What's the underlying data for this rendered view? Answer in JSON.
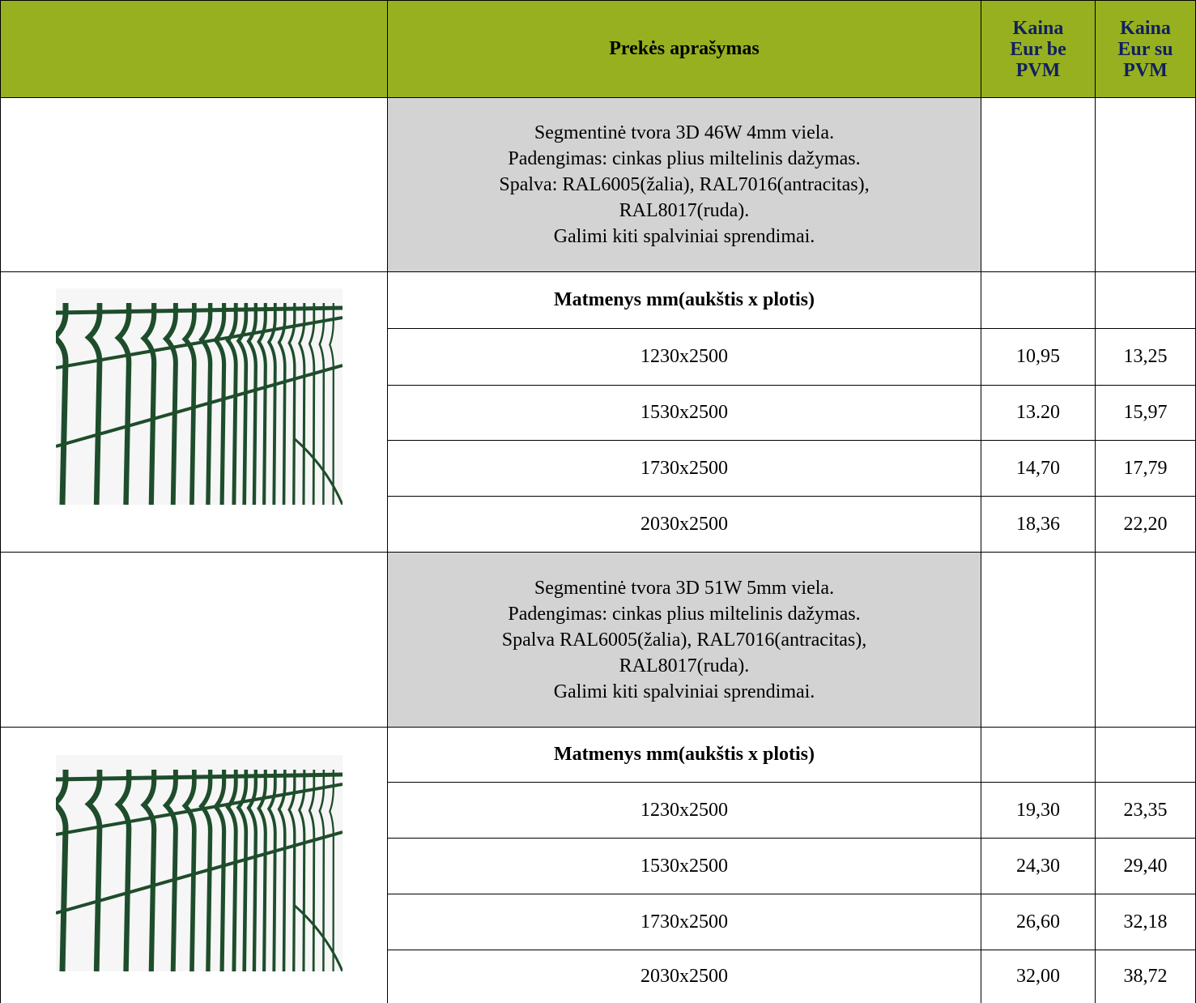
{
  "header": {
    "description": "Prekės aprašymas",
    "price_without_vat": "Kaina\nEur be\nPVM",
    "price_with_vat": "Kaina\nEur su\nPVM"
  },
  "products": [
    {
      "description": [
        "Segmentinė tvora 3D 46W 4mm viela.",
        "Padengimas: cinkas plius miltelinis dažymas.",
        "Spalva: RAL6005(žalia), RAL7016(antracitas),",
        "RAL8017(ruda).",
        "Galimi kiti spalviniai sprendimai."
      ],
      "dimensions_label": "Matmenys mm(aukštis x plotis)",
      "rows": [
        {
          "size": "1230x2500",
          "price_without_vat": "10,95",
          "price_with_vat": "13,25"
        },
        {
          "size": "1530x2500",
          "price_without_vat": "13.20",
          "price_with_vat": "15,97"
        },
        {
          "size": "1730x2500",
          "price_without_vat": "14,70",
          "price_with_vat": "17,79"
        },
        {
          "size": "2030x2500",
          "price_without_vat": "18,36",
          "price_with_vat": "22,20"
        }
      ]
    },
    {
      "description": [
        "Segmentinė tvora 3D  51W 5mm viela.",
        "Padengimas: cinkas plius miltelinis dažymas.",
        "Spalva RAL6005(žalia), RAL7016(antracitas),",
        "RAL8017(ruda).",
        "Galimi kiti spalviniai sprendimai."
      ],
      "dimensions_label": "Matmenys mm(aukštis x plotis)",
      "rows": [
        {
          "size": "1230x2500",
          "price_without_vat": "19,30",
          "price_with_vat": "23,35"
        },
        {
          "size": "1530x2500",
          "price_without_vat": "24,30",
          "price_with_vat": "29,40"
        },
        {
          "size": "1730x2500",
          "price_without_vat": "26,60",
          "price_with_vat": "32,18"
        },
        {
          "size": "2030x2500",
          "price_without_vat": "32,00",
          "price_with_vat": "38,72"
        }
      ]
    }
  ]
}
